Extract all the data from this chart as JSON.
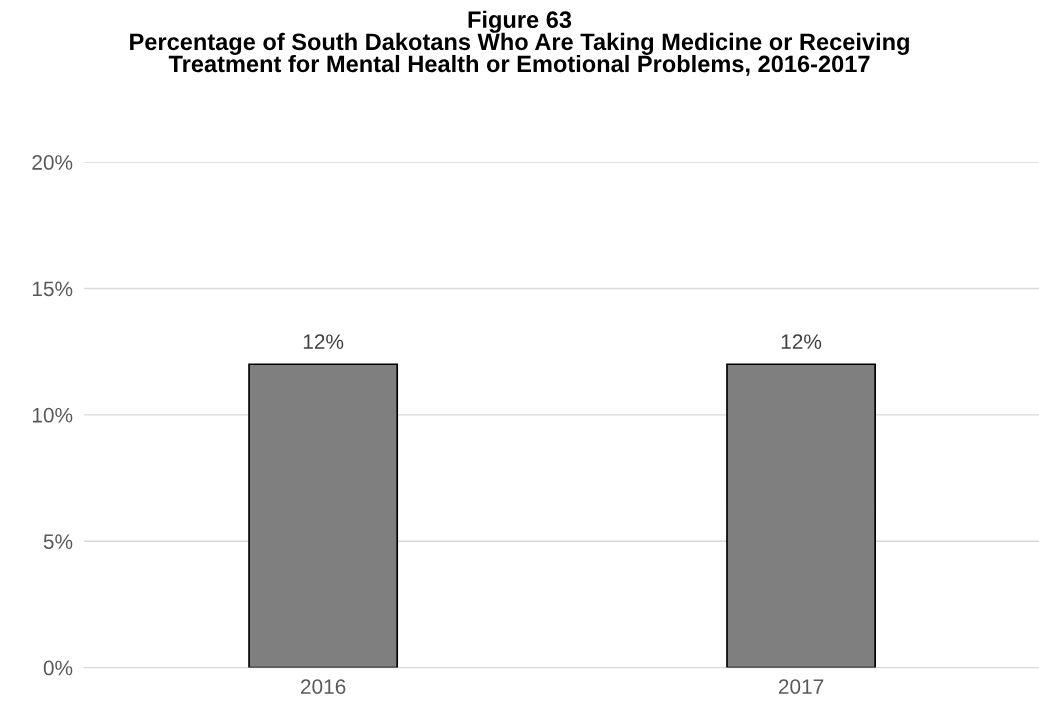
{
  "chart_data": {
    "type": "bar",
    "title": "Figure 63\nPercentage of South Dakotans Who Are Taking Medicine or Receiving\nTreatment for Mental Health or Emotional Problems, 2016-2017",
    "categories": [
      "2016",
      "2017"
    ],
    "values": [
      12,
      12
    ],
    "value_labels": [
      "12%",
      "12%"
    ],
    "color": "#7f7f7f",
    "ylim": [
      0,
      20
    ],
    "yticks": [
      {
        "value": 0,
        "label": "0%"
      },
      {
        "value": 5,
        "label": "5%"
      },
      {
        "value": 10,
        "label": "10%"
      },
      {
        "value": 15,
        "label": "15%"
      },
      {
        "value": 20,
        "label": "20%"
      }
    ],
    "grid": "y",
    "legend": false
  }
}
